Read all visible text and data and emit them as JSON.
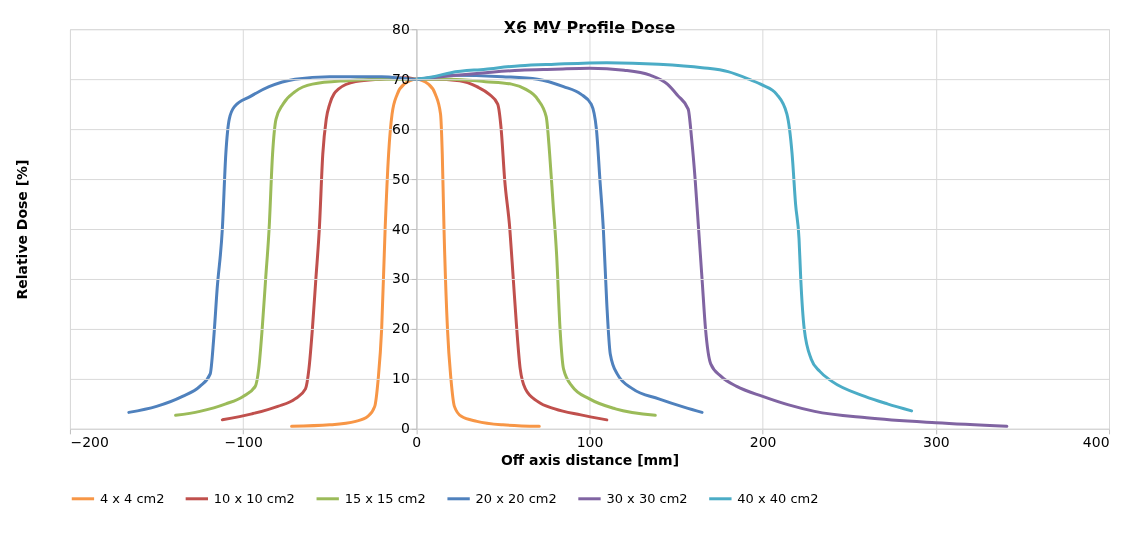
{
  "chart_data": {
    "type": "line",
    "title": "X6 MV Profile Dose",
    "xlabel": "Off axis distance [mm]",
    "ylabel": "Relative Dose [%]",
    "xlim": [
      -200,
      400
    ],
    "xticks": [
      -200,
      -100,
      0,
      100,
      200,
      300,
      400
    ],
    "ylim": [
      0,
      80
    ],
    "yticks": [
      0,
      10,
      20,
      30,
      40,
      50,
      60,
      70,
      80
    ],
    "grid": true,
    "legend": "bottom",
    "marker": "none",
    "line_style": "solid",
    "series": [
      {
        "name": "4 x 4 cm2",
        "color": "#f79646",
        "x": [
          -72,
          -50,
          -35,
          -28,
          -24,
          -22,
          -20,
          -18,
          -16,
          -14,
          -11,
          -7,
          0,
          7,
          11,
          14,
          15,
          16,
          18,
          20,
          22,
          26,
          35,
          50,
          71
        ],
        "values": [
          0.5,
          0.8,
          1.5,
          2.5,
          4.5,
          10,
          20,
          40,
          55,
          63,
          67,
          69,
          70,
          69,
          67,
          63,
          55,
          40,
          20,
          10,
          4.5,
          2.5,
          1.5,
          0.8,
          0.5
        ]
      },
      {
        "name": "10 x 10 cm2",
        "color": "#c0504d",
        "x": [
          -112,
          -95,
          -80,
          -70,
          -64,
          -62,
          -60,
          -58,
          -56,
          -54,
          -52,
          -50,
          -45,
          -35,
          -20,
          -5,
          0,
          10,
          25,
          35,
          42,
          47,
          49,
          51,
          54,
          56,
          58,
          60,
          63,
          70,
          80,
          95,
          110
        ],
        "values": [
          1.8,
          3,
          4.5,
          6,
          8,
          12,
          20,
          30,
          40,
          55,
          62,
          65,
          68,
          69.5,
          70,
          70.3,
          70,
          70,
          69.7,
          68.5,
          67,
          65,
          60,
          50,
          40,
          30,
          20,
          12,
          8,
          5.5,
          4,
          2.8,
          1.8
        ]
      },
      {
        "name": "15 x 15 cm2",
        "color": "#9bbb59",
        "x": [
          -139,
          -125,
          -110,
          -100,
          -93,
          -91,
          -89,
          -87,
          -85,
          -83,
          -81,
          -77,
          -70,
          -60,
          -40,
          -20,
          0,
          20,
          40,
          55,
          63,
          70,
          75,
          77,
          79,
          81,
          83,
          85,
          90,
          100,
          115,
          138
        ],
        "values": [
          2.7,
          3.5,
          5,
          6.5,
          8.5,
          12,
          20,
          30,
          40,
          55,
          62,
          65,
          67.5,
          69,
          69.7,
          70,
          70,
          70,
          69.5,
          69,
          68,
          66,
          62.5,
          55,
          45,
          35,
          20,
          12,
          8.5,
          6,
          4,
          2.7
        ]
      },
      {
        "name": "20 x 20 cm2",
        "color": "#4f81bd",
        "x": [
          -166,
          -150,
          -135,
          -125,
          -119,
          -117,
          -115,
          -112,
          -110,
          -108,
          -105,
          -96,
          -85,
          -70,
          -50,
          -20,
          0,
          20,
          50,
          70,
          85,
          95,
          101,
          104,
          106,
          108,
          110,
          112,
          116,
          125,
          140,
          155,
          165
        ],
        "values": [
          3.3,
          4.5,
          6.5,
          8.5,
          11,
          18,
          28,
          40,
          55,
          62,
          64.5,
          66.5,
          68.5,
          70,
          70.5,
          70.5,
          70,
          70.8,
          70.5,
          70,
          68.5,
          67,
          65,
          60,
          50,
          40,
          25,
          15,
          11,
          8,
          6,
          4.3,
          3.3
        ]
      },
      {
        "name": "30 x 30 cm2",
        "color": "#8064a2",
        "x": [
          0,
          20,
          40,
          60,
          80,
          100,
          120,
          135,
          145,
          151,
          157,
          159,
          161,
          163,
          165,
          167,
          170,
          176,
          185,
          200,
          215,
          230,
          260,
          300,
          341
        ],
        "values": [
          70,
          70.7,
          71.3,
          71.8,
          72,
          72.2,
          71.8,
          70.8,
          69,
          66.7,
          64,
          58,
          50,
          40,
          30,
          20,
          13,
          10.5,
          8.5,
          6.5,
          4.8,
          3.5,
          2.2,
          1.2,
          0.5
        ]
      },
      {
        "name": "40 x 40 cm2",
        "color": "#4bacc6",
        "x": [
          0,
          10,
          20,
          40,
          60,
          80,
          110,
          140,
          165,
          180,
          192,
          200,
          208,
          214,
          217,
          219,
          221,
          222,
          224,
          228,
          233,
          240,
          259,
          272,
          286
        ],
        "values": [
          70,
          70.5,
          71.3,
          72,
          72.7,
          73,
          73.3,
          73,
          72.3,
          71.5,
          70,
          68.8,
          67,
          63,
          55,
          45,
          38,
          30,
          20,
          14,
          11.5,
          9.5,
          6.5,
          5,
          3.6
        ]
      }
    ]
  }
}
